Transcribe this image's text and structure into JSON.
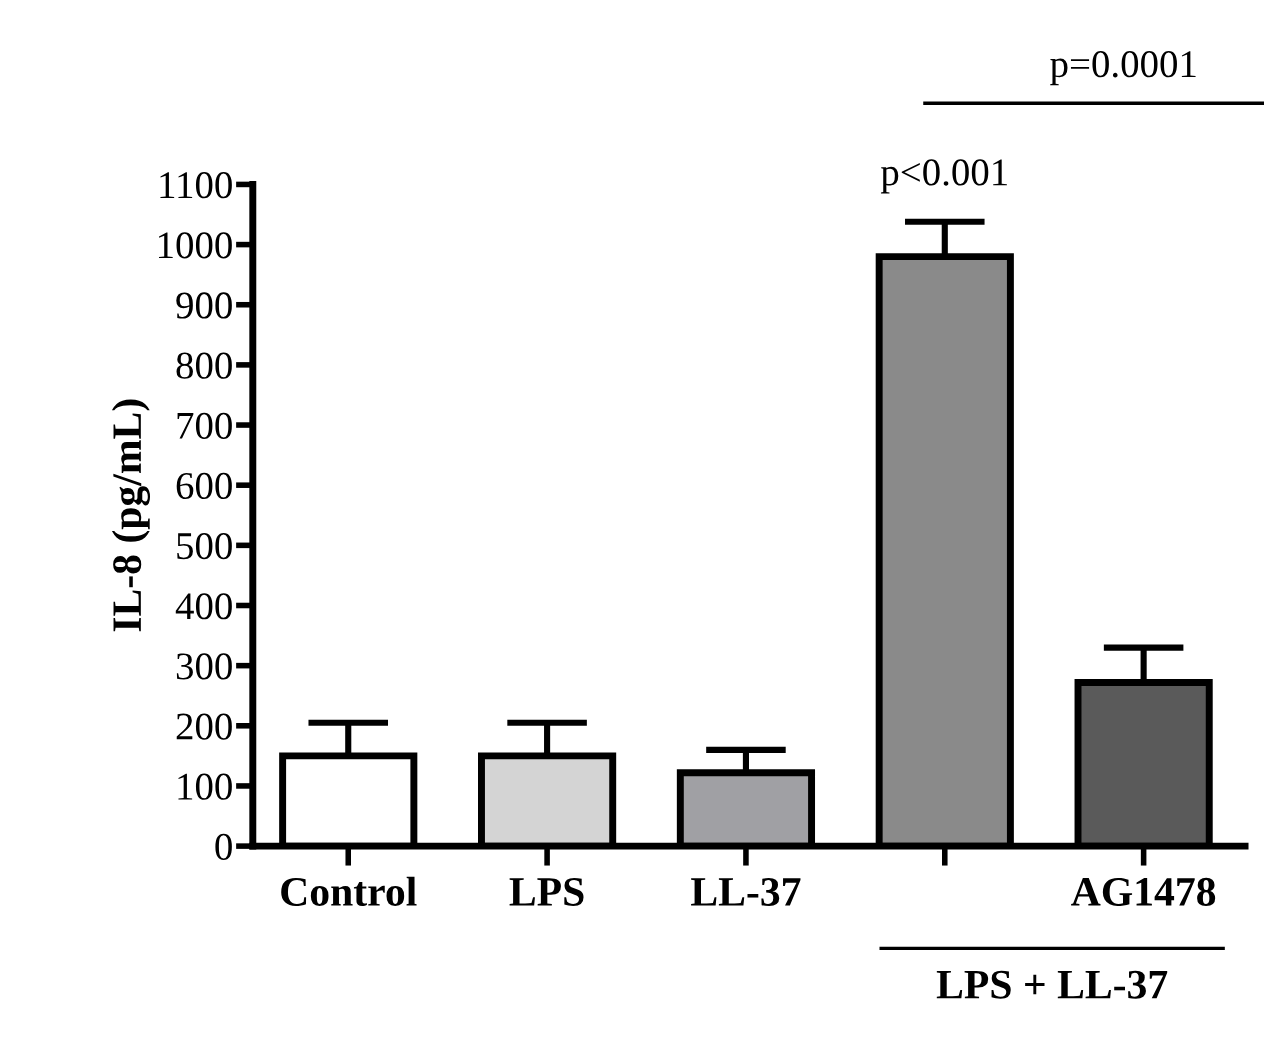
{
  "chart_data": {
    "type": "bar",
    "ylabel": "IL-8 (pg/mL)",
    "categories": [
      "Control",
      "LPS",
      "LL-37",
      null,
      "AG1478"
    ],
    "values": [
      150,
      150,
      122,
      980,
      272
    ],
    "colors": [
      "#ffffff",
      "#d4d4d4",
      "#a0a0a4",
      "#8a8a8a",
      "#5a5a5a"
    ],
    "errors": [
      [
        150,
        205
      ],
      [
        150,
        205
      ],
      [
        122,
        160
      ],
      [
        980,
        1038
      ],
      [
        272,
        330
      ]
    ],
    "ylim": [
      0,
      1100
    ],
    "yticks": [
      0,
      100,
      200,
      300,
      400,
      500,
      600,
      700,
      800,
      900,
      1000,
      1100
    ],
    "annotations": [
      "p<0.001",
      "p=0.0001",
      "LPS + LL-37"
    ],
    "grid": false
  }
}
